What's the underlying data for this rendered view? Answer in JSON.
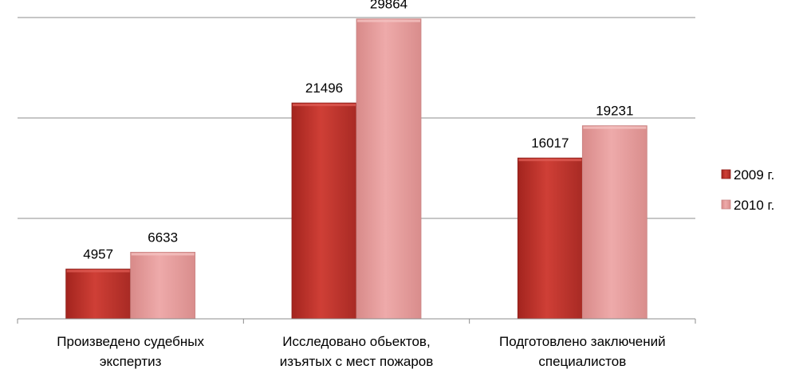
{
  "chart_data": {
    "type": "bar",
    "categories": [
      [
        "Произведено судебных",
        "экспертиз"
      ],
      [
        "Исследовано обьектов,",
        "изъятых с мест пожаров"
      ],
      [
        "Подготовлено заключений",
        "специалистов"
      ]
    ],
    "series": [
      {
        "name": "2009 г.",
        "values": [
          4957,
          21496,
          16017
        ],
        "color": "#c0392f"
      },
      {
        "name": "2010 г.",
        "values": [
          6633,
          29864,
          19231
        ],
        "color": "#e39a9a"
      }
    ],
    "ylim": [
      0,
      30000
    ],
    "grid": true,
    "legend_position": "right"
  }
}
